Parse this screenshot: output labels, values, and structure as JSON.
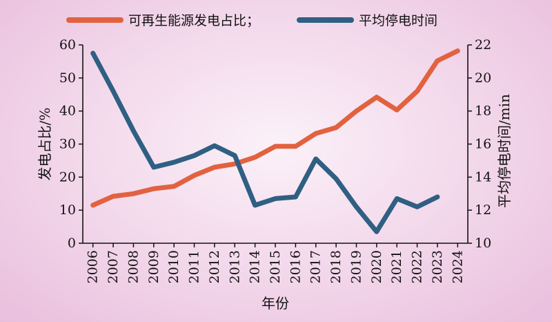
{
  "chart_data": {
    "type": "line",
    "x": [
      "2006",
      "2007",
      "2008",
      "2009",
      "2010",
      "2011",
      "2012",
      "2013",
      "2014",
      "2015",
      "2016",
      "2017",
      "2018",
      "2019",
      "2020",
      "2021",
      "2022",
      "2023",
      "2024"
    ],
    "xlabel": "年份",
    "ylabel_left": "发电占比/%",
    "ylabel_right": "平均停电时间/min",
    "ylim_left": [
      0,
      60
    ],
    "ylim_right": [
      10,
      22
    ],
    "yticks_left": [
      "0",
      "10",
      "20",
      "30",
      "40",
      "50",
      "60"
    ],
    "yticks_right": [
      "10",
      "12",
      "14",
      "16",
      "18",
      "20",
      "22"
    ],
    "series": [
      {
        "name": "可再生能源发电占比；",
        "axis": "left",
        "color": "#e2623f",
        "values": [
          11.5,
          14.2,
          15.0,
          16.5,
          17.2,
          20.5,
          23.0,
          24.0,
          26.0,
          29.3,
          29.3,
          33.2,
          35.0,
          40.0,
          44.2,
          40.3,
          46.0,
          55.2,
          58.2
        ]
      },
      {
        "name": "平均停电时间",
        "axis": "right",
        "color": "#2f5f82",
        "values": [
          21.5,
          19.2,
          16.8,
          14.6,
          14.9,
          15.3,
          15.9,
          15.3,
          12.3,
          12.7,
          12.8,
          15.1,
          13.9,
          12.2,
          10.7,
          12.7,
          12.2,
          12.8,
          null
        ]
      }
    ],
    "legend_position": "top",
    "grid": false
  }
}
